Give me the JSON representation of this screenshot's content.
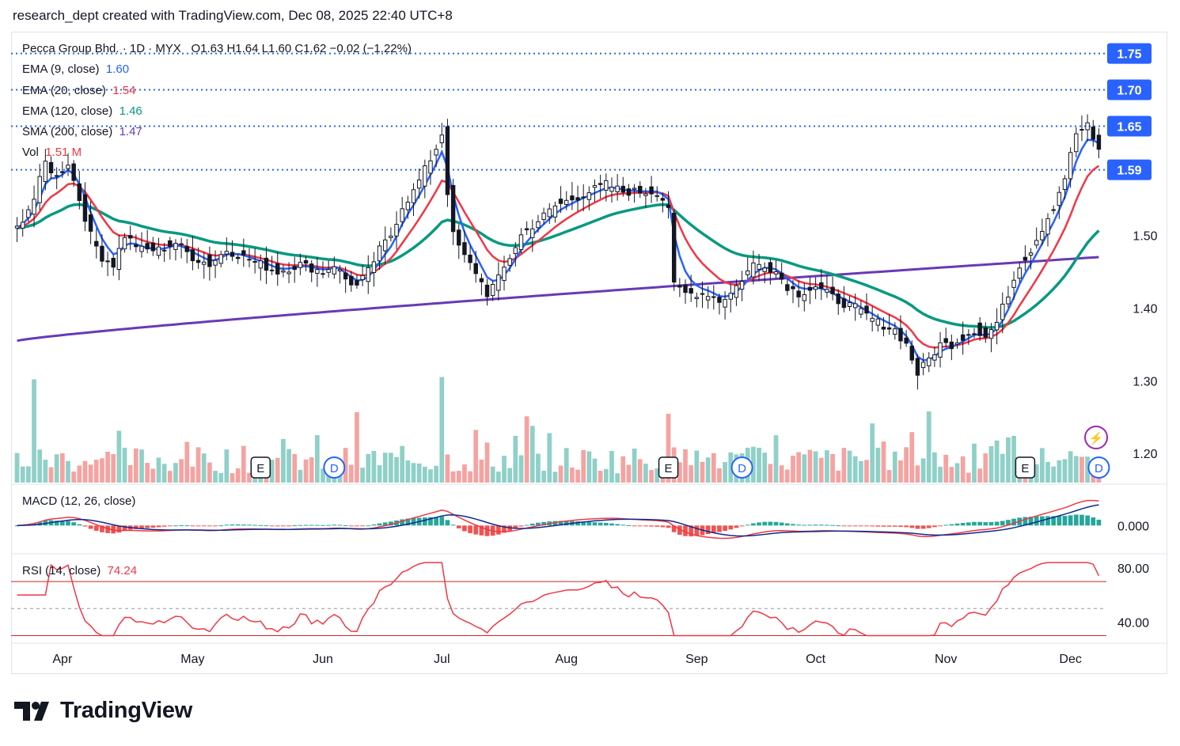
{
  "header": {
    "text": "research_dept created with TradingView.com, Dec 08, 2025 22:40 UTC+8"
  },
  "legend": {
    "symbol": "Pecca Group Bhd. · 1D · MYX",
    "ohlc": "O1.63  H1.64  L1.60  C1.62  −0.02 (−1.22%)",
    "ema9_label": "EMA (9, close)",
    "ema9_value": "1.60",
    "ema20_label": "EMA (20, close)",
    "ema20_value": "1.54",
    "ema120_label": "EMA (120, close)",
    "ema120_value": "1.46",
    "sma200_label": "SMA (200, close)",
    "sma200_value": "1.47",
    "vol_label": "Vol",
    "vol_value": "1.51 M"
  },
  "macd_label": "MACD (12, 26, close)",
  "rsi_label": "RSI (14, close)",
  "rsi_value": "74.24",
  "logo_text": "TradingView",
  "colors": {
    "up": "#26a69a",
    "down": "#ef5350",
    "ema9": "#2962ff",
    "ema20": "#f23645",
    "ema120": "#089981",
    "sma200": "#673ab7",
    "level": "#2962ff",
    "candle": "#131722"
  },
  "chart_data": {
    "type": "candlestick",
    "title": "Pecca Group Bhd. · 1D · MYX",
    "price_axis": {
      "ticks": [
        1.2,
        1.3,
        1.4,
        1.5
      ],
      "tick_labels": [
        "1.20",
        "1.30",
        "1.40",
        "1.50"
      ],
      "range": [
        1.16,
        1.78
      ]
    },
    "price_levels": [
      {
        "value": 1.75,
        "label": "1.75"
      },
      {
        "value": 1.7,
        "label": "1.70"
      },
      {
        "value": 1.65,
        "label": "1.65"
      },
      {
        "value": 1.59,
        "label": "1.59"
      }
    ],
    "x_labels": [
      {
        "label": "Apr",
        "day": 8
      },
      {
        "label": "May",
        "day": 31
      },
      {
        "label": "Jun",
        "day": 54
      },
      {
        "label": "Jul",
        "day": 75
      },
      {
        "label": "Aug",
        "day": 97
      },
      {
        "label": "Sep",
        "day": 120
      },
      {
        "label": "Oct",
        "day": 141
      },
      {
        "label": "Nov",
        "day": 164
      },
      {
        "label": "Dec",
        "day": 186
      }
    ],
    "days": 192,
    "close_anchors": [
      [
        0,
        1.51
      ],
      [
        3,
        1.55
      ],
      [
        5,
        1.6
      ],
      [
        7,
        1.58
      ],
      [
        9,
        1.6
      ],
      [
        11,
        1.55
      ],
      [
        13,
        1.5
      ],
      [
        15,
        1.47
      ],
      [
        17,
        1.46
      ],
      [
        19,
        1.5
      ],
      [
        22,
        1.48
      ],
      [
        25,
        1.48
      ],
      [
        28,
        1.49
      ],
      [
        31,
        1.47
      ],
      [
        34,
        1.46
      ],
      [
        37,
        1.48
      ],
      [
        40,
        1.47
      ],
      [
        43,
        1.46
      ],
      [
        46,
        1.45
      ],
      [
        50,
        1.46
      ],
      [
        54,
        1.45
      ],
      [
        56,
        1.46
      ],
      [
        58,
        1.44
      ],
      [
        60,
        1.43
      ],
      [
        62,
        1.45
      ],
      [
        64,
        1.48
      ],
      [
        66,
        1.5
      ],
      [
        68,
        1.54
      ],
      [
        70,
        1.56
      ],
      [
        72,
        1.59
      ],
      [
        74,
        1.62
      ],
      [
        75,
        1.64
      ],
      [
        76,
        1.56
      ],
      [
        77,
        1.5
      ],
      [
        79,
        1.47
      ],
      [
        81,
        1.45
      ],
      [
        83,
        1.42
      ],
      [
        85,
        1.44
      ],
      [
        87,
        1.47
      ],
      [
        89,
        1.5
      ],
      [
        92,
        1.52
      ],
      [
        95,
        1.54
      ],
      [
        98,
        1.55
      ],
      [
        101,
        1.56
      ],
      [
        104,
        1.57
      ],
      [
        107,
        1.56
      ],
      [
        110,
        1.56
      ],
      [
        113,
        1.56
      ],
      [
        115,
        1.54
      ],
      [
        116,
        1.43
      ],
      [
        118,
        1.42
      ],
      [
        120,
        1.42
      ],
      [
        122,
        1.42
      ],
      [
        124,
        1.41
      ],
      [
        126,
        1.42
      ],
      [
        128,
        1.44
      ],
      [
        130,
        1.46
      ],
      [
        132,
        1.46
      ],
      [
        134,
        1.45
      ],
      [
        136,
        1.43
      ],
      [
        138,
        1.42
      ],
      [
        141,
        1.43
      ],
      [
        143,
        1.42
      ],
      [
        145,
        1.41
      ],
      [
        148,
        1.4
      ],
      [
        150,
        1.39
      ],
      [
        152,
        1.38
      ],
      [
        155,
        1.37
      ],
      [
        157,
        1.35
      ],
      [
        159,
        1.31
      ],
      [
        161,
        1.33
      ],
      [
        163,
        1.35
      ],
      [
        165,
        1.35
      ],
      [
        167,
        1.36
      ],
      [
        169,
        1.37
      ],
      [
        171,
        1.36
      ],
      [
        173,
        1.38
      ],
      [
        175,
        1.42
      ],
      [
        177,
        1.46
      ],
      [
        179,
        1.48
      ],
      [
        181,
        1.51
      ],
      [
        183,
        1.54
      ],
      [
        185,
        1.58
      ],
      [
        187,
        1.64
      ],
      [
        189,
        1.65
      ],
      [
        190,
        1.63
      ],
      [
        191,
        1.62
      ]
    ],
    "volume_range": [
      0,
      2.5
    ],
    "volume_label": "Vol 1.51 M",
    "events": [
      {
        "label": "E",
        "day": 43
      },
      {
        "label": "D",
        "day": 56
      },
      {
        "label": "E",
        "day": 115
      },
      {
        "label": "D",
        "day": 128
      },
      {
        "label": "E",
        "day": 178
      },
      {
        "label": "D",
        "day": 191
      }
    ],
    "indicators": [
      {
        "name": "EMA (9, close)",
        "last": 1.6
      },
      {
        "name": "EMA (20, close)",
        "last": 1.54
      },
      {
        "name": "EMA (120, close)",
        "last": 1.46
      },
      {
        "name": "SMA (200, close)",
        "last": 1.47
      }
    ],
    "macd": {
      "label": "MACD (12, 26, close)",
      "ticks": [
        0.0
      ],
      "tick_labels": [
        "0.000"
      ],
      "range": [
        -0.045,
        0.06
      ]
    },
    "rsi": {
      "label": "RSI (14, close)",
      "last": 74.24,
      "ticks": [
        40,
        80
      ],
      "tick_labels": [
        "40.00",
        "80.00"
      ],
      "bands": [
        30,
        50,
        70
      ],
      "range": [
        25,
        87
      ]
    }
  }
}
